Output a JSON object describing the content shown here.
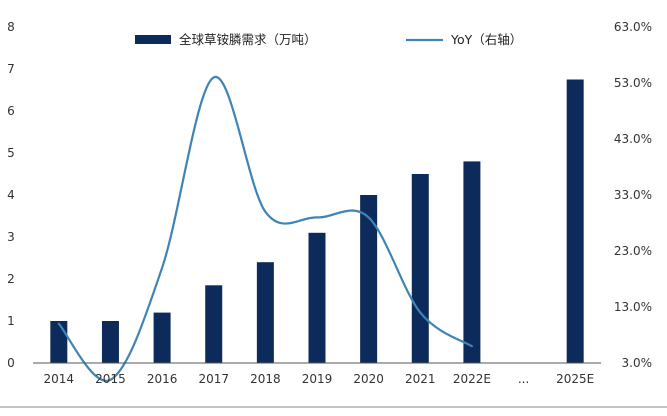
{
  "colors": {
    "bar": "#0d2b5a",
    "line": "#3f84b5",
    "axis": "#555555",
    "text": "#333333",
    "separator": "#888888"
  },
  "chart_data": {
    "type": "bar",
    "title": "",
    "categories": [
      "2014",
      "2015",
      "2016",
      "2017",
      "2018",
      "2019",
      "2020",
      "2021",
      "2022E",
      "...",
      "2025E"
    ],
    "series": [
      {
        "name": "全球草铵膦需求（万吨）",
        "kind": "bar",
        "axis": "left",
        "values": [
          1.0,
          1.0,
          1.2,
          1.85,
          2.4,
          3.1,
          4.0,
          4.5,
          4.8,
          null,
          6.75
        ]
      },
      {
        "name": "YoY（右轴）",
        "kind": "line",
        "axis": "right",
        "values": [
          10.0,
          0.0,
          20.0,
          54.0,
          30.0,
          29.0,
          29.0,
          12.0,
          6.0,
          null,
          null
        ]
      }
    ],
    "ylim": [
      0,
      8
    ],
    "y_ticks": [
      "0",
      "1",
      "2",
      "3",
      "4",
      "5",
      "6",
      "7",
      "8"
    ],
    "y2lim": [
      3,
      63
    ],
    "y2_ticks": [
      "3.0%",
      "13.0%",
      "23.0%",
      "33.0%",
      "43.0%",
      "53.0%",
      "63.0%"
    ],
    "xlabel": "",
    "ylabel": "",
    "y2label": "",
    "grid": false,
    "legend_position": "top"
  }
}
